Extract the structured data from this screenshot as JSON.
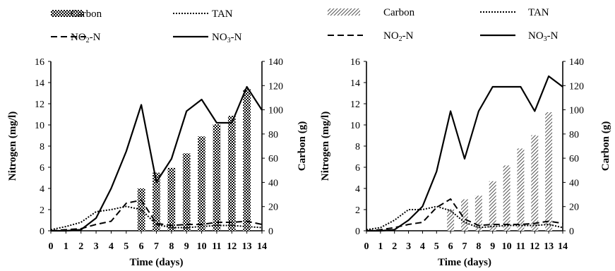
{
  "colors": {
    "ink": "#000000",
    "background": "#ffffff"
  },
  "chart_data": [
    {
      "type": "bar+line",
      "title": "",
      "xlabel": "Time (days)",
      "ylabel": "Nitrogen (mg/l)",
      "y2label": "Carbon (g)",
      "x": [
        0,
        1,
        2,
        3,
        4,
        5,
        6,
        7,
        8,
        9,
        10,
        11,
        12,
        13,
        14
      ],
      "xlim": [
        0,
        14
      ],
      "ylim": [
        0,
        16
      ],
      "yticks": [
        0,
        2,
        4,
        6,
        8,
        10,
        12,
        14,
        16
      ],
      "y2lim": [
        0,
        140
      ],
      "y2ticks": [
        0,
        20,
        40,
        60,
        80,
        100,
        120,
        140
      ],
      "grid": false,
      "legend_position": "top",
      "legend": [
        {
          "label": "Carbon",
          "style": "checker-bar"
        },
        {
          "label": "TAN",
          "style": "dotted"
        },
        {
          "label": "NO2-N",
          "style": "dashed",
          "base": "NO",
          "sub": "2",
          "tail": "-N"
        },
        {
          "label": "NO3-N",
          "style": "solid",
          "base": "NO",
          "sub": "3",
          "tail": "-N"
        }
      ],
      "bars": {
        "name": "Carbon",
        "axis": "secondary",
        "pattern": "checker",
        "x": [
          6,
          7,
          8,
          9,
          10,
          11,
          12,
          13
        ],
        "values": [
          35,
          48,
          52,
          64,
          78,
          88,
          95,
          117
        ]
      },
      "series": [
        {
          "name": "TAN",
          "style": "dotted",
          "axis": "primary",
          "x": [
            0,
            1,
            2,
            3,
            4,
            5,
            6,
            7,
            8,
            9,
            10,
            11,
            12,
            13,
            14
          ],
          "values": [
            0.1,
            0.4,
            0.8,
            1.8,
            2.0,
            2.3,
            2.0,
            0.6,
            0.3,
            0.3,
            0.4,
            0.5,
            0.5,
            0.4,
            0.3
          ]
        },
        {
          "name": "NO2-N",
          "style": "dashed",
          "axis": "primary",
          "x": [
            0,
            1,
            2,
            3,
            4,
            5,
            6,
            7,
            8,
            9,
            10,
            11,
            12,
            13,
            14
          ],
          "values": [
            0.0,
            0.1,
            0.2,
            0.6,
            0.9,
            2.6,
            2.9,
            0.7,
            0.5,
            0.6,
            0.6,
            0.8,
            0.8,
            0.9,
            0.6
          ]
        },
        {
          "name": "NO3-N",
          "style": "solid",
          "axis": "primary",
          "x": [
            0,
            1,
            2,
            3,
            4,
            5,
            6,
            7,
            8,
            9,
            10,
            11,
            12,
            13,
            14
          ],
          "values": [
            0.0,
            0.0,
            0.1,
            1.2,
            4.0,
            7.5,
            11.9,
            4.6,
            6.8,
            11.3,
            12.4,
            10.2,
            10.2,
            13.6,
            11.4
          ]
        }
      ]
    },
    {
      "type": "bar+line",
      "title": "",
      "xlabel": "Time (days)",
      "ylabel": "Nitrogen (mg/l)",
      "y2label": "Carbon (g)",
      "x": [
        0,
        1,
        2,
        3,
        4,
        5,
        6,
        7,
        8,
        9,
        10,
        11,
        12,
        13,
        14
      ],
      "xlim": [
        0,
        14
      ],
      "ylim": [
        0,
        16
      ],
      "yticks": [
        0,
        2,
        4,
        6,
        8,
        10,
        12,
        14,
        16
      ],
      "y2lim": [
        0,
        140
      ],
      "y2ticks": [
        0,
        20,
        40,
        60,
        80,
        100,
        120,
        140
      ],
      "grid": false,
      "legend_position": "top",
      "legend": [
        {
          "label": "Carbon",
          "style": "hatch-bar"
        },
        {
          "label": "TAN",
          "style": "dotted"
        },
        {
          "label": "NO2-N",
          "style": "dashed",
          "base": "NO",
          "sub": "2",
          "tail": "-N"
        },
        {
          "label": "NO3-N",
          "style": "solid",
          "base": "NO",
          "sub": "3",
          "tail": "-N"
        }
      ],
      "bars": {
        "name": "Carbon",
        "axis": "secondary",
        "pattern": "hatch",
        "x": [
          6,
          7,
          8,
          9,
          10,
          11,
          12,
          13
        ],
        "values": [
          18,
          26,
          29,
          41,
          54,
          68,
          79,
          98
        ]
      },
      "series": [
        {
          "name": "TAN",
          "style": "dotted",
          "axis": "primary",
          "x": [
            0,
            1,
            2,
            3,
            4,
            5,
            6,
            7,
            8,
            9,
            10,
            11,
            12,
            13,
            14
          ],
          "values": [
            0.1,
            0.3,
            1.0,
            2.0,
            2.0,
            2.3,
            1.9,
            0.8,
            0.3,
            0.4,
            0.5,
            0.5,
            0.5,
            0.6,
            0.3
          ]
        },
        {
          "name": "NO2-N",
          "style": "dashed",
          "axis": "primary",
          "x": [
            0,
            1,
            2,
            3,
            4,
            5,
            6,
            7,
            8,
            9,
            10,
            11,
            12,
            13,
            14
          ],
          "values": [
            0.0,
            0.1,
            0.3,
            0.6,
            0.8,
            2.2,
            3.0,
            1.1,
            0.5,
            0.6,
            0.6,
            0.6,
            0.7,
            0.9,
            0.7
          ]
        },
        {
          "name": "NO3-N",
          "style": "solid",
          "axis": "primary",
          "x": [
            0,
            1,
            2,
            3,
            4,
            5,
            6,
            7,
            8,
            9,
            10,
            11,
            12,
            13,
            14
          ],
          "values": [
            0.0,
            0.0,
            0.1,
            1.0,
            2.3,
            5.6,
            11.3,
            6.8,
            11.3,
            13.6,
            13.6,
            13.6,
            11.3,
            14.6,
            13.6
          ]
        }
      ]
    }
  ]
}
